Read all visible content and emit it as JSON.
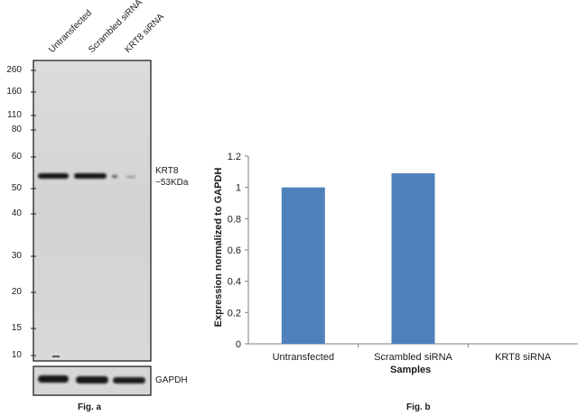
{
  "figure_a": {
    "lane_labels": [
      "Untransfected",
      "Scrambled siRNA",
      "KRT8 siRNA"
    ],
    "mw_markers": [
      "260",
      "160",
      "110",
      "80",
      "60",
      "50",
      "40",
      "30",
      "20",
      "15",
      "10"
    ],
    "band_label_line1": "KRT8",
    "band_label_line2": "~53KDa",
    "loading_control_label": "GAPDH",
    "caption": "Fig. a"
  },
  "figure_b": {
    "caption": "Fig. b"
  },
  "chart_data": {
    "type": "bar",
    "categories": [
      "Untransfected",
      "Scrambled siRNA",
      "KRT8 siRNA"
    ],
    "values": [
      1.0,
      1.09,
      0.0
    ],
    "xlabel": "Samples",
    "ylabel": "Expression normalized to GAPDH",
    "ylim": [
      0,
      1.2
    ],
    "yticks": [
      "0",
      "0.2",
      "0.4",
      "0.6",
      "0.8",
      "1",
      "1.2"
    ],
    "bar_color": "#4f81bd",
    "grid": false,
    "legend": "none"
  }
}
